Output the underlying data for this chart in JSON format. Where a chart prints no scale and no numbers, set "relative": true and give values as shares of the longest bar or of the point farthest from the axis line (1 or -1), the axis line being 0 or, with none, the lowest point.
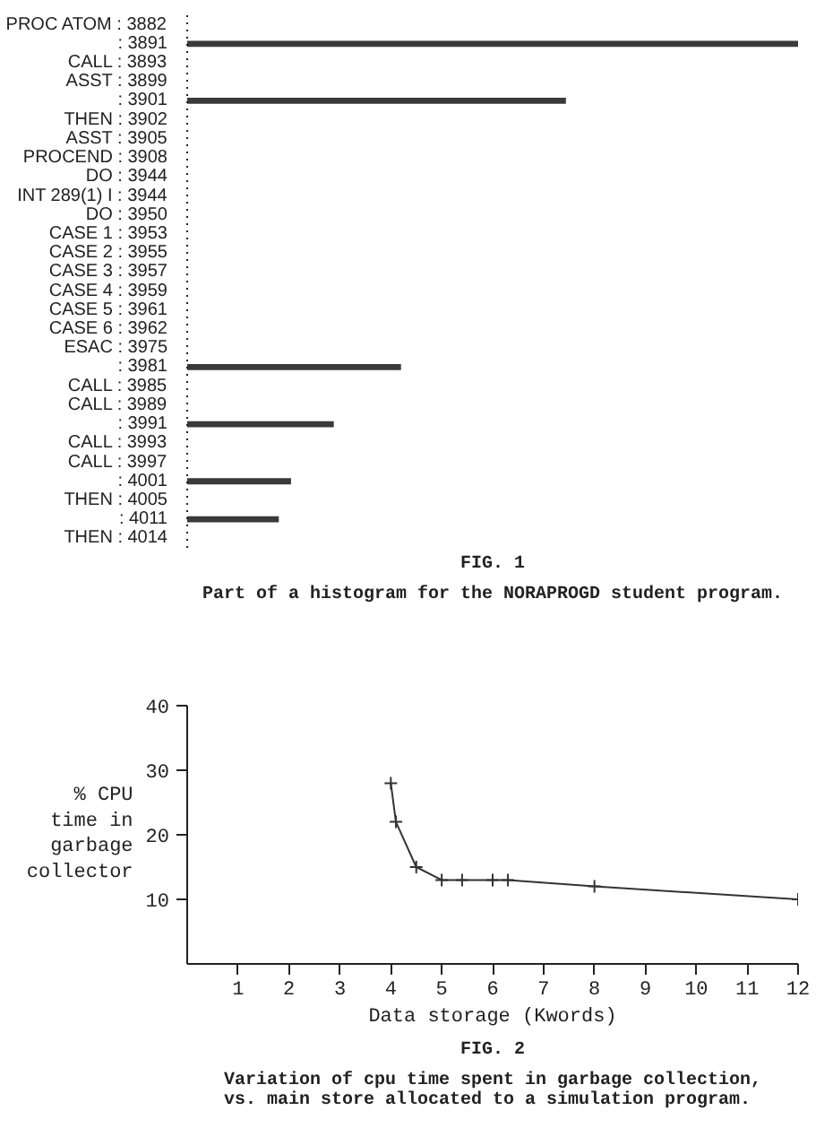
{
  "chart_data": [
    {
      "type": "bar",
      "orientation": "horizontal",
      "relative": true,
      "title": "FIG. 1",
      "subtitle": "Part of a histogram for the NORAPROGD student program.",
      "color": "#3a3a3a",
      "categories": [
        "PROC ATOM : 3882",
        ": 3891",
        "CALL : 3893",
        "ASST : 3899",
        ": 3901",
        "THEN : 3902",
        "ASST : 3905",
        "PROCEND : 3908",
        "DO : 3944",
        "INT 289(1) I : 3944",
        "DO : 3950",
        "CASE 1 : 3953",
        "CASE 2 : 3955",
        "CASE 3 : 3957",
        "CASE 4 : 3959",
        "CASE 5 : 3961",
        "CASE 6 : 3962",
        "ESAC : 3975",
        ": 3981",
        "CALL : 3985",
        "CALL : 3989",
        ": 3991",
        "CALL : 3993",
        "CALL : 3997",
        ": 4001",
        "THEN : 4005",
        ": 4011",
        "THEN : 4014"
      ],
      "values": [
        0,
        1,
        0,
        0,
        0.62,
        0,
        0,
        0,
        0,
        0,
        0,
        0,
        0,
        0,
        0,
        0,
        0,
        0,
        0.35,
        0,
        0,
        0.24,
        0,
        0,
        0.17,
        0,
        0.15,
        0
      ]
    },
    {
      "type": "line",
      "title": "FIG. 2",
      "subtitle": "Variation of cpu time spent in garbage collection,\nvs. main store allocated to a simulation program.",
      "xlabel": "Data storage (Kwords)",
      "ylabel": "% CPU\ntime in\ngarbage\ncollector",
      "color": "#333333",
      "marker": "cross",
      "line_style": "solid",
      "x": [
        4,
        4.1,
        4.5,
        5,
        5.4,
        6,
        6.3,
        8,
        12
      ],
      "values": [
        28,
        22,
        15,
        13,
        13,
        13,
        13,
        12,
        10
      ],
      "xlim": [
        0,
        12
      ],
      "ylim": [
        0,
        40
      ],
      "xticks": [
        1,
        2,
        3,
        4,
        5,
        6,
        7,
        8,
        9,
        10,
        11,
        12
      ],
      "yticks": [
        10,
        20,
        30,
        40
      ]
    }
  ]
}
